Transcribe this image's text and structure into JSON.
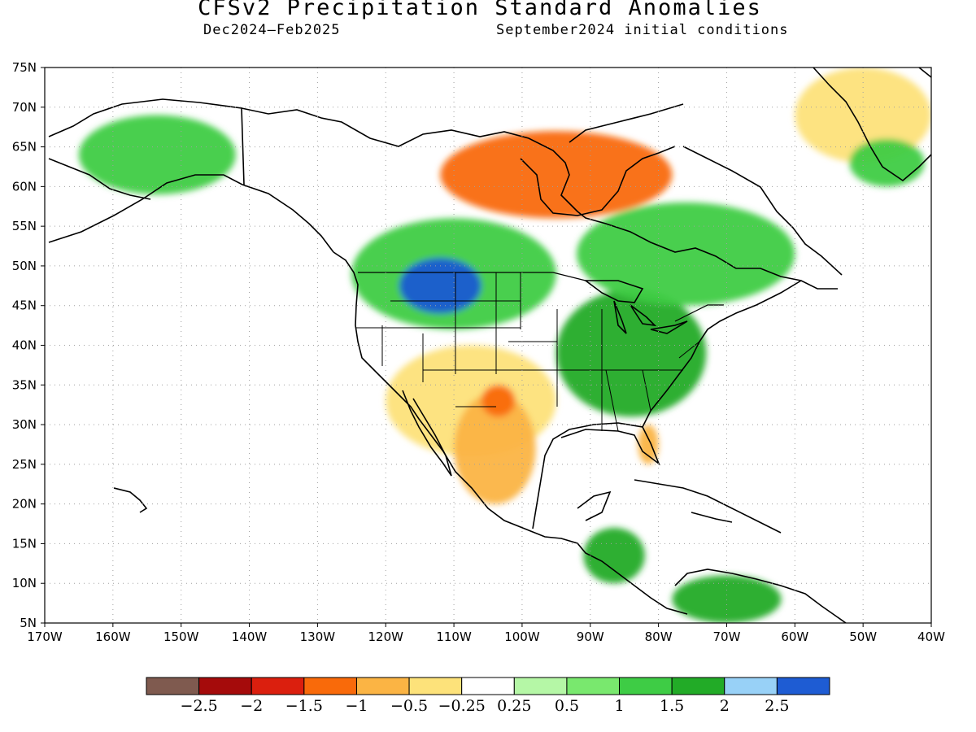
{
  "title": "CFSv2 Precipitation Standard Anomalies",
  "subtitle_left": "Dec2024—Feb2025",
  "subtitle_right": "September2024 initial conditions",
  "map": {
    "lon_range": [
      -170,
      -40
    ],
    "lat_range": [
      5,
      75
    ],
    "grid": "dotted",
    "lat_ticks": [
      "75N",
      "70N",
      "65N",
      "60N",
      "55N",
      "50N",
      "45N",
      "40N",
      "35N",
      "30N",
      "25N",
      "20N",
      "15N",
      "10N",
      "5N"
    ],
    "lon_ticks": [
      "170W",
      "160W",
      "150W",
      "140W",
      "130W",
      "120W",
      "110W",
      "100W",
      "90W",
      "80W",
      "70W",
      "60W",
      "50W",
      "40W"
    ]
  },
  "colorbar": {
    "colors": [
      "#7f5a4f",
      "#a50b0b",
      "#db1f0e",
      "#f96a0a",
      "#fbb444",
      "#fde27a",
      "#ffffff",
      "#b5f7a6",
      "#79e86e",
      "#3ecc45",
      "#22ab27",
      "#98d1f7",
      "#1e5cd3"
    ],
    "labels": [
      "−2.5",
      "−2",
      "−1.5",
      "−1",
      "−0.5",
      "−0.25",
      "0.25",
      "0.5",
      "1",
      "1.5",
      "2",
      "2.5"
    ]
  },
  "anomaly_regions": [
    {
      "name": "southwest-dry",
      "lon": [
        -120,
        -95
      ],
      "lat": [
        26,
        40
      ],
      "category": -0.5
    },
    {
      "name": "texas-mexico-dry",
      "lon": [
        -110,
        -98
      ],
      "lat": [
        20,
        34
      ],
      "category": -1
    },
    {
      "name": "new-mexico-dry",
      "lon": [
        -106,
        -101
      ],
      "lat": [
        31,
        35
      ],
      "category": -1.5
    },
    {
      "name": "hudson-bay-dry",
      "lon": [
        -112,
        -78
      ],
      "lat": [
        56,
        67
      ],
      "category": -1.5
    },
    {
      "name": "alaska-wet",
      "lon": [
        -165,
        -142
      ],
      "lat": [
        59,
        69
      ],
      "category": 1
    },
    {
      "name": "northern-plains-wet",
      "lon": [
        -125,
        -95
      ],
      "lat": [
        42,
        56
      ],
      "category": 1
    },
    {
      "name": "montana-wet",
      "lon": [
        -118,
        -106
      ],
      "lat": [
        44,
        51
      ],
      "category": 2.5
    },
    {
      "name": "ohio-valley-wet",
      "lon": [
        -95,
        -73
      ],
      "lat": [
        31,
        47
      ],
      "category": 1.5
    },
    {
      "name": "canada-east-wet",
      "lon": [
        -92,
        -60
      ],
      "lat": [
        45,
        58
      ],
      "category": 1
    },
    {
      "name": "greenland-dry",
      "lon": [
        -60,
        -40
      ],
      "lat": [
        63,
        75
      ],
      "category": -0.5
    },
    {
      "name": "greenland-wet",
      "lon": [
        -52,
        -41
      ],
      "lat": [
        60,
        66
      ],
      "category": 1
    },
    {
      "name": "florida-dry",
      "lon": [
        -83,
        -80
      ],
      "lat": [
        25,
        30
      ],
      "category": -1
    },
    {
      "name": "central-america-wet",
      "lon": [
        -91,
        -82
      ],
      "lat": [
        10,
        17
      ],
      "category": 1.5
    },
    {
      "name": "colombia-wet",
      "lon": [
        -78,
        -62
      ],
      "lat": [
        5,
        11
      ],
      "category": 1.5
    }
  ]
}
